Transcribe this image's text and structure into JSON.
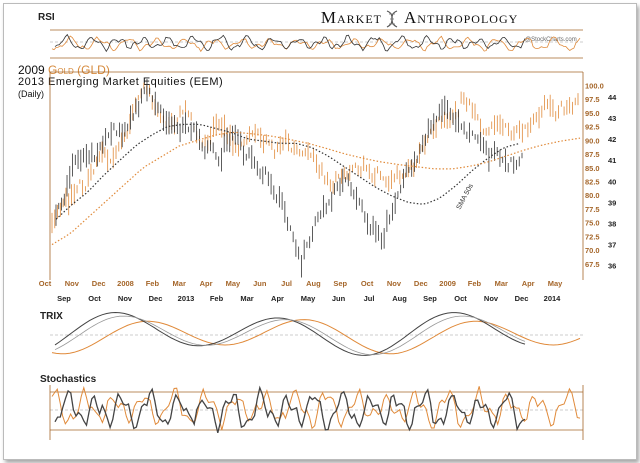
{
  "brand": {
    "left": "Market",
    "right": "Anthropology"
  },
  "credit": "@StockCharts.com",
  "rsi_label": "RSI",
  "trix_label": "TRIX",
  "stoch_label": "Stochastics",
  "sma_label": "SMA 50s",
  "title": {
    "line1_prefix": "2009 ",
    "line1_highlight": "Gold (GLD)",
    "line2": "2013  Emerging Market Equities (EEM)",
    "line3": "(Daily)"
  },
  "colors": {
    "gold": "#e08a3a",
    "eem": "#333333",
    "axis": "#a5662a"
  },
  "chart_data": {
    "type": "line",
    "title": "2009 Gold (GLD) / 2013 Emerging Market Equities (EEM) (Daily)",
    "x_top_labels": [
      "Oct",
      "Nov",
      "Dec",
      "2008",
      "Feb",
      "Mar",
      "Apr",
      "May",
      "Jun",
      "Jul",
      "Aug",
      "Sep",
      "Oct",
      "Nov",
      "Dec",
      "2009",
      "Feb",
      "Mar",
      "Apr",
      "May"
    ],
    "x_bottom_labels": [
      "Sep",
      "Oct",
      "Nov",
      "Dec",
      "2013",
      "Feb",
      "Mar",
      "Apr",
      "May",
      "Jun",
      "Jul",
      "Aug",
      "Sep",
      "Oct",
      "Nov",
      "Dec",
      "2014"
    ],
    "y_left_ticks": [
      100.0,
      97.5,
      95.0,
      92.5,
      90.0,
      87.5,
      85.0,
      82.5,
      80.0,
      77.5,
      75.0,
      72.5,
      70.0,
      67.5
    ],
    "y_left_labels": [
      "100.0",
      "97.5",
      "95.0",
      "92.5",
      "90.0",
      "87.5",
      "85.0",
      "82.5",
      "80.0",
      "77.5",
      "75.0",
      "72.5",
      "70.0",
      "67.5"
    ],
    "y_left_range": [
      66,
      101
    ],
    "y_right_ticks": [
      44,
      43,
      42,
      41,
      40,
      39,
      38,
      37,
      36
    ],
    "y_right_labels": [
      "44",
      "43",
      "42",
      "41",
      "40",
      "39",
      "38",
      "37",
      "36"
    ],
    "y_right_range": [
      35.7,
      44.8
    ],
    "series": [
      {
        "name": "Gold (GLD) 2009",
        "axis": "left",
        "values": [
          74,
          76,
          79,
          81,
          83,
          82,
          84,
          87,
          86,
          89,
          91,
          93,
          97,
          99,
          98,
          96,
          94,
          92,
          94,
          95,
          93,
          90,
          91,
          93,
          92,
          90,
          89,
          91,
          92,
          90,
          89,
          88,
          90,
          91,
          89,
          87,
          88,
          86,
          85,
          83,
          82,
          84,
          83,
          85,
          86,
          84,
          83,
          81,
          82,
          84,
          85,
          86,
          88,
          90,
          92,
          95,
          94,
          96,
          97,
          95,
          93,
          92,
          94,
          93,
          91,
          90,
          92,
          93,
          95,
          96,
          95,
          94,
          96,
          97,
          98
        ]
      },
      {
        "name": "Emerging Market Equities (EEM) 2013",
        "axis": "right",
        "values": [
          38.5,
          38.9,
          40.6,
          41.2,
          41.5,
          41.3,
          41.8,
          42.4,
          42.1,
          43.0,
          43.7,
          44.2,
          43.7,
          43.2,
          43.0,
          42.7,
          42.4,
          42.2,
          41.6,
          41.8,
          41.2,
          41.7,
          42.1,
          41.5,
          41.3,
          40.5,
          40.1,
          39.1,
          38.6,
          37.6,
          36.2,
          37.0,
          38.1,
          38.7,
          39.6,
          40.1,
          39.6,
          38.9,
          38.1,
          37.9,
          37.4,
          38.2,
          39.3,
          40.6,
          41.1,
          42.1,
          42.6,
          43.1,
          43.5,
          43.0,
          42.6,
          42.0,
          41.7,
          41.3,
          41.6,
          41.0,
          40.6,
          41.1
        ]
      },
      {
        "name": "SMA 50",
        "axis": "right",
        "values": [
          38.2,
          38.9,
          39.5,
          40.3,
          41.0,
          41.7,
          42.2,
          42.6,
          42.7,
          42.7,
          42.5,
          42.3,
          42.0,
          41.9,
          41.8,
          41.8,
          41.6,
          41.2,
          40.7,
          40.2,
          39.7,
          39.3,
          39.0,
          38.9,
          39.2,
          39.8,
          40.5,
          41.1,
          41.6,
          41.8
        ]
      },
      {
        "name": "Gold SMA",
        "axis": "left",
        "values": [
          71,
          73,
          76,
          79,
          82,
          85,
          87,
          89,
          90,
          91,
          91.5,
          91.2,
          90.8,
          90.2,
          89.5,
          88.6,
          87.6,
          86.8,
          86.1,
          85.6,
          85.2,
          84.8,
          84.8,
          85.3,
          86.1,
          87.2,
          88.3,
          89.2,
          89.9,
          90.4
        ]
      }
    ],
    "panels": [
      "RSI",
      "TRIX",
      "Stochastics"
    ]
  }
}
